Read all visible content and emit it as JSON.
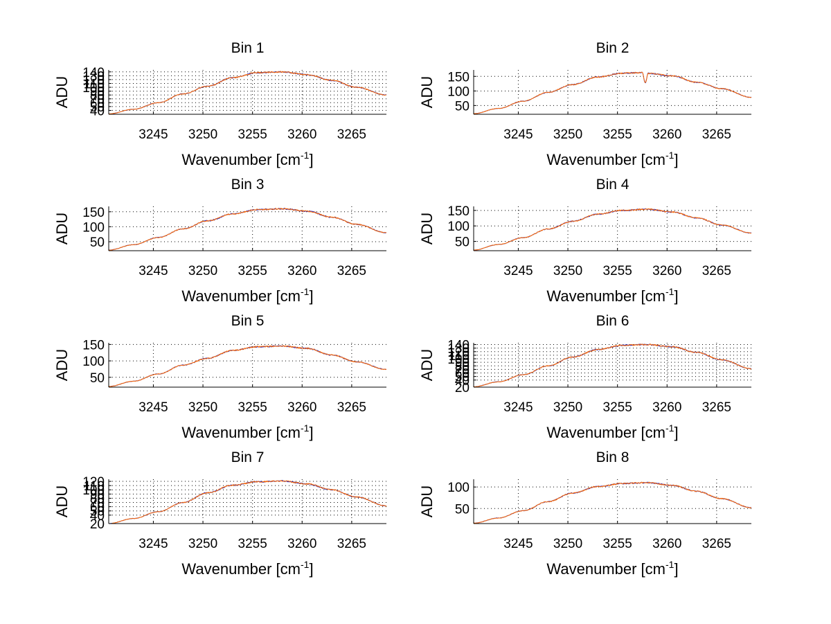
{
  "figure": {
    "background": "#ffffff"
  },
  "chart_data": [
    {
      "type": "line",
      "title": "Bin 1",
      "xlabel": "Wavenumber [cm",
      "xlabel_sup": "-1",
      "xlabel_end": "]",
      "ylabel": "ADU",
      "xlim": [
        3240.5,
        3268.5
      ],
      "ylim": [
        30,
        145
      ],
      "xticks": [
        3245,
        3250,
        3255,
        3260,
        3265
      ],
      "yticks": [
        40,
        50,
        60,
        70,
        80,
        90,
        100,
        110,
        120,
        130,
        140
      ],
      "grid": true,
      "series": [
        {
          "name": "series-1",
          "color": "#2020c0",
          "x": [
            3240.5,
            3243,
            3245.5,
            3248,
            3250.5,
            3253,
            3255.5,
            3258,
            3260.5,
            3263,
            3265.5,
            3268.5
          ],
          "y": [
            31,
            43,
            60,
            83,
            103,
            125,
            138,
            140,
            133,
            118,
            100,
            80
          ]
        },
        {
          "name": "series-2",
          "color": "#ff6a00",
          "x": [
            3240.5,
            3243,
            3245.5,
            3248,
            3250.5,
            3253,
            3255.5,
            3258,
            3260.5,
            3263,
            3265.5,
            3268.5
          ],
          "y": [
            31,
            43,
            60,
            83,
            103,
            125,
            138,
            140,
            133,
            118,
            100,
            80
          ]
        }
      ]
    },
    {
      "type": "line",
      "title": "Bin 2",
      "xlabel": "Wavenumber [cm",
      "xlabel_sup": "-1",
      "xlabel_end": "]",
      "ylabel": "ADU",
      "xlim": [
        3240.5,
        3268.5
      ],
      "ylim": [
        20,
        172
      ],
      "xticks": [
        3245,
        3250,
        3255,
        3260,
        3265
      ],
      "yticks": [
        50,
        100,
        150
      ],
      "grid": true,
      "series": [
        {
          "name": "series-1",
          "color": "#2020c0",
          "x": [
            3240.5,
            3243,
            3245.5,
            3248,
            3250.5,
            3253,
            3255.5,
            3257.5,
            3257.8,
            3258.1,
            3260.5,
            3263,
            3265.5,
            3268.5
          ],
          "y": [
            22,
            40,
            65,
            95,
            122,
            148,
            161,
            163,
            128,
            160,
            152,
            130,
            108,
            78
          ]
        },
        {
          "name": "series-2",
          "color": "#ff6a00",
          "x": [
            3240.5,
            3243,
            3245.5,
            3248,
            3250.5,
            3253,
            3255.5,
            3257.5,
            3257.8,
            3258.1,
            3260.5,
            3263,
            3265.5,
            3268.5
          ],
          "y": [
            22,
            40,
            65,
            95,
            122,
            148,
            161,
            163,
            128,
            160,
            152,
            130,
            108,
            78
          ]
        }
      ]
    },
    {
      "type": "line",
      "title": "Bin 3",
      "xlabel": "Wavenumber [cm",
      "xlabel_sup": "-1",
      "xlabel_end": "]",
      "ylabel": "ADU",
      "xlim": [
        3240.5,
        3268.5
      ],
      "ylim": [
        20,
        168
      ],
      "xticks": [
        3245,
        3250,
        3255,
        3260,
        3265
      ],
      "yticks": [
        50,
        100,
        150
      ],
      "grid": true,
      "series": [
        {
          "name": "series-1",
          "color": "#2020c0",
          "x": [
            3240.5,
            3243,
            3245.5,
            3248,
            3250.5,
            3253,
            3255.5,
            3258,
            3260.5,
            3263,
            3265.5,
            3268.5
          ],
          "y": [
            22,
            40,
            64,
            93,
            120,
            143,
            157,
            160,
            152,
            132,
            108,
            80
          ]
        },
        {
          "name": "series-2",
          "color": "#ff6a00",
          "x": [
            3240.5,
            3243,
            3245.5,
            3248,
            3250.5,
            3253,
            3255.5,
            3258,
            3260.5,
            3263,
            3265.5,
            3268.5
          ],
          "y": [
            22,
            40,
            64,
            93,
            120,
            143,
            157,
            160,
            152,
            132,
            108,
            80
          ]
        }
      ]
    },
    {
      "type": "line",
      "title": "Bin 4",
      "xlabel": "Wavenumber [cm",
      "xlabel_sup": "-1",
      "xlabel_end": "]",
      "ylabel": "ADU",
      "xlim": [
        3240.5,
        3268.5
      ],
      "ylim": [
        20,
        163
      ],
      "xticks": [
        3245,
        3250,
        3255,
        3260,
        3265
      ],
      "yticks": [
        50,
        100,
        150
      ],
      "grid": true,
      "series": [
        {
          "name": "series-1",
          "color": "#2020c0",
          "x": [
            3240.5,
            3243,
            3245.5,
            3248,
            3250.5,
            3253,
            3255.5,
            3258,
            3260.5,
            3263,
            3265.5,
            3268.5
          ],
          "y": [
            22,
            40,
            62,
            90,
            115,
            138,
            150,
            154,
            145,
            126,
            103,
            77
          ]
        },
        {
          "name": "series-2",
          "color": "#ff6a00",
          "x": [
            3240.5,
            3243,
            3245.5,
            3248,
            3250.5,
            3253,
            3255.5,
            3258,
            3260.5,
            3263,
            3265.5,
            3268.5
          ],
          "y": [
            22,
            40,
            62,
            90,
            115,
            138,
            150,
            154,
            145,
            126,
            103,
            77
          ]
        }
      ]
    },
    {
      "type": "line",
      "title": "Bin 5",
      "xlabel": "Wavenumber [cm",
      "xlabel_sup": "-1",
      "xlabel_end": "]",
      "ylabel": "ADU",
      "xlim": [
        3240.5,
        3268.5
      ],
      "ylim": [
        20,
        155
      ],
      "xticks": [
        3245,
        3250,
        3255,
        3260,
        3265
      ],
      "yticks": [
        50,
        100,
        150
      ],
      "grid": true,
      "series": [
        {
          "name": "series-1",
          "color": "#2020c0",
          "x": [
            3240.5,
            3243,
            3245.5,
            3248,
            3250.5,
            3253,
            3255.5,
            3258,
            3260.5,
            3263,
            3265.5,
            3268.5
          ],
          "y": [
            22,
            38,
            60,
            87,
            108,
            132,
            143,
            145,
            138,
            118,
            97,
            74
          ]
        },
        {
          "name": "series-2",
          "color": "#ff6a00",
          "x": [
            3240.5,
            3243,
            3245.5,
            3248,
            3250.5,
            3253,
            3255.5,
            3258,
            3260.5,
            3263,
            3265.5,
            3268.5
          ],
          "y": [
            22,
            38,
            60,
            87,
            108,
            132,
            143,
            145,
            138,
            118,
            97,
            74
          ]
        }
      ]
    },
    {
      "type": "line",
      "title": "Bin 6",
      "xlabel": "Wavenumber [cm",
      "xlabel_sup": "-1",
      "xlabel_end": "]",
      "ylabel": "ADU",
      "xlim": [
        3240.5,
        3268.5
      ],
      "ylim": [
        20,
        145
      ],
      "xticks": [
        3245,
        3250,
        3255,
        3260,
        3265
      ],
      "yticks": [
        20,
        40,
        50,
        60,
        70,
        80,
        90,
        100,
        110,
        120,
        130,
        140
      ],
      "grid": true,
      "series": [
        {
          "name": "series-1",
          "color": "#2020c0",
          "x": [
            3240.5,
            3243,
            3245.5,
            3248,
            3250.5,
            3253,
            3255.5,
            3258,
            3260.5,
            3263,
            3265.5,
            3268.5
          ],
          "y": [
            21,
            35,
            55,
            80,
            105,
            126,
            138,
            140,
            134,
            118,
            97,
            72
          ]
        },
        {
          "name": "series-2",
          "color": "#ff6a00",
          "x": [
            3240.5,
            3243,
            3245.5,
            3248,
            3250.5,
            3253,
            3255.5,
            3258,
            3260.5,
            3263,
            3265.5,
            3268.5
          ],
          "y": [
            21,
            35,
            55,
            80,
            105,
            126,
            138,
            140,
            134,
            118,
            97,
            72
          ]
        }
      ]
    },
    {
      "type": "line",
      "title": "Bin 7",
      "xlabel": "Wavenumber [cm",
      "xlabel_sup": "-1",
      "xlabel_end": "]",
      "ylabel": "ADU",
      "xlim": [
        3240.5,
        3268.5
      ],
      "ylim": [
        20,
        125
      ],
      "xticks": [
        3245,
        3250,
        3255,
        3260,
        3265
      ],
      "yticks": [
        20,
        40,
        50,
        60,
        70,
        80,
        90,
        100,
        110,
        120
      ],
      "grid": true,
      "series": [
        {
          "name": "series-1",
          "color": "#2020c0",
          "x": [
            3240.5,
            3243,
            3245.5,
            3248,
            3250.5,
            3253,
            3255.5,
            3258,
            3260.5,
            3263,
            3265.5,
            3268.5
          ],
          "y": [
            20,
            32,
            48,
            70,
            93,
            111,
            119,
            121,
            114,
            100,
            83,
            62
          ]
        },
        {
          "name": "series-2",
          "color": "#ff6a00",
          "x": [
            3240.5,
            3243,
            3245.5,
            3248,
            3250.5,
            3253,
            3255.5,
            3258,
            3260.5,
            3263,
            3265.5,
            3268.5
          ],
          "y": [
            20,
            32,
            48,
            70,
            93,
            111,
            119,
            121,
            114,
            100,
            83,
            62
          ]
        }
      ]
    },
    {
      "type": "line",
      "title": "Bin 8",
      "xlabel": "Wavenumber [cm",
      "xlabel_sup": "-1",
      "xlabel_end": "]",
      "ylabel": "ADU",
      "xlim": [
        3240.5,
        3268.5
      ],
      "ylim": [
        15,
        118
      ],
      "xticks": [
        3245,
        3250,
        3255,
        3260,
        3265
      ],
      "yticks": [
        50,
        100
      ],
      "grid": true,
      "series": [
        {
          "name": "series-1",
          "color": "#2020c0",
          "x": [
            3240.5,
            3243,
            3245.5,
            3248,
            3250.5,
            3253,
            3255.5,
            3258,
            3260.5,
            3263,
            3265.5,
            3268.5
          ],
          "y": [
            16,
            28,
            45,
            66,
            86,
            101,
            108,
            110,
            104,
            90,
            73,
            52
          ]
        },
        {
          "name": "series-2",
          "color": "#ff6a00",
          "x": [
            3240.5,
            3243,
            3245.5,
            3248,
            3250.5,
            3253,
            3255.5,
            3258,
            3260.5,
            3263,
            3265.5,
            3268.5
          ],
          "y": [
            16,
            28,
            45,
            66,
            86,
            101,
            108,
            110,
            104,
            90,
            73,
            52
          ]
        }
      ]
    }
  ]
}
